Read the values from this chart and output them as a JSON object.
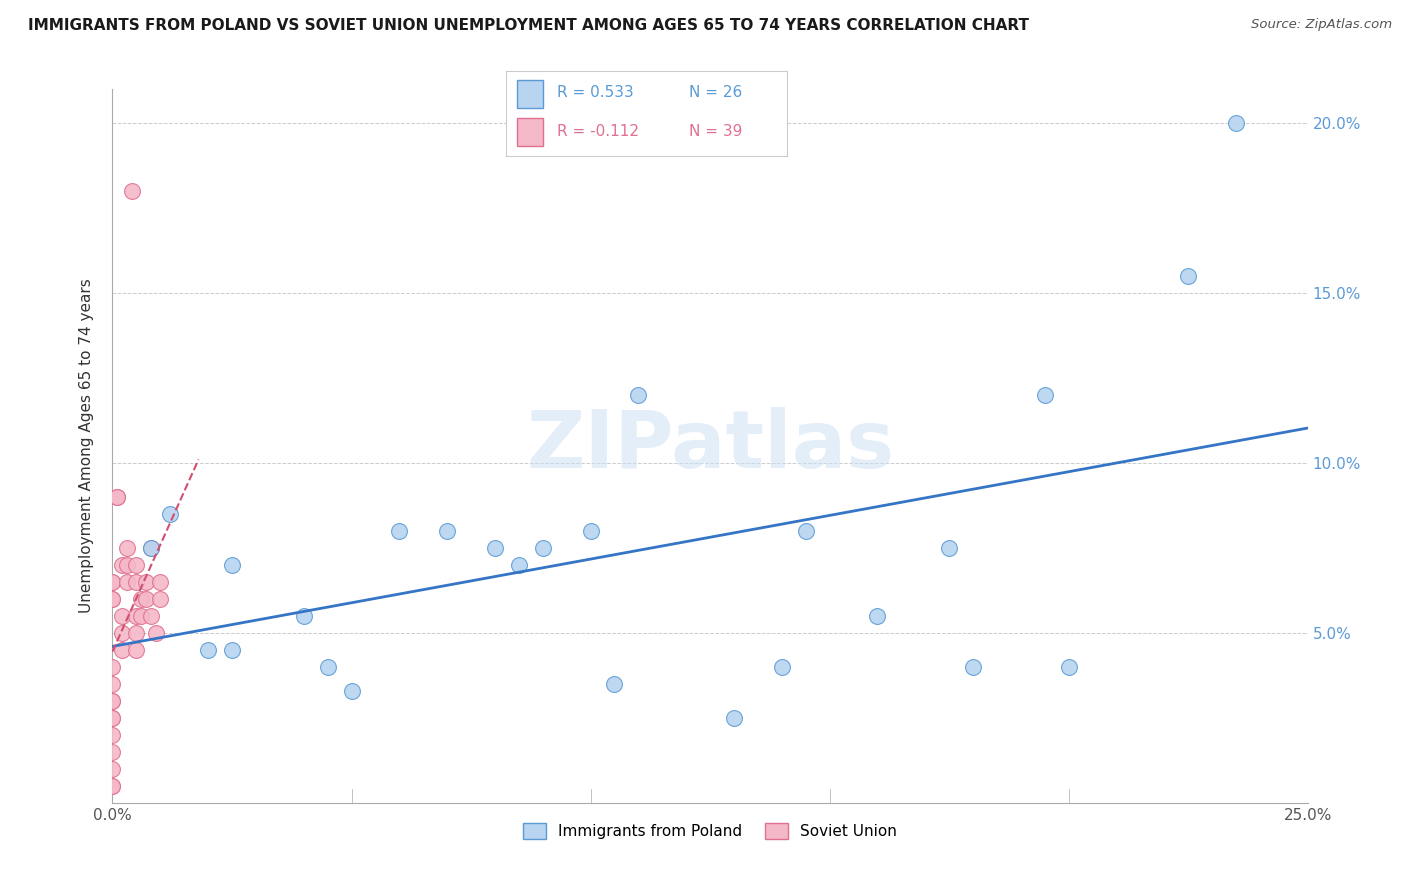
{
  "title": "IMMIGRANTS FROM POLAND VS SOVIET UNION UNEMPLOYMENT AMONG AGES 65 TO 74 YEARS CORRELATION CHART",
  "source": "Source: ZipAtlas.com",
  "ylabel": "Unemployment Among Ages 65 to 74 years",
  "xlim": [
    0.0,
    0.25
  ],
  "ylim": [
    0.0,
    0.21
  ],
  "xticks": [
    0.0,
    0.05,
    0.1,
    0.15,
    0.2,
    0.25
  ],
  "yticks": [
    0.0,
    0.05,
    0.1,
    0.15,
    0.2
  ],
  "xtick_labels": [
    "0.0%",
    "",
    "",
    "",
    "",
    "25.0%"
  ],
  "right_ytick_labels": [
    "",
    "5.0%",
    "10.0%",
    "15.0%",
    "20.0%"
  ],
  "poland_color": "#b8d4f0",
  "soviet_color": "#f5b8c8",
  "poland_edge_color": "#5b9bd5",
  "soviet_edge_color": "#e07090",
  "trendline_poland_color": "#3575c5",
  "trendline_soviet_color": "#d05070",
  "legend_R_poland": "R = 0.533",
  "legend_N_poland": "N = 26",
  "legend_R_soviet": "R = -0.112",
  "legend_N_soviet": "N = 39",
  "watermark": "ZIPatlas",
  "poland_x": [
    0.008,
    0.012,
    0.02,
    0.025,
    0.025,
    0.04,
    0.045,
    0.05,
    0.06,
    0.07,
    0.08,
    0.085,
    0.09,
    0.1,
    0.105,
    0.11,
    0.13,
    0.14,
    0.145,
    0.16,
    0.175,
    0.18,
    0.195,
    0.2,
    0.225,
    0.235
  ],
  "poland_y": [
    0.075,
    0.085,
    0.045,
    0.07,
    0.045,
    0.055,
    0.04,
    0.033,
    0.08,
    0.08,
    0.075,
    0.07,
    0.075,
    0.08,
    0.035,
    0.12,
    0.025,
    0.04,
    0.08,
    0.055,
    0.075,
    0.04,
    0.12,
    0.04,
    0.155,
    0.2
  ],
  "soviet_x": [
    0.0,
    0.0,
    0.0,
    0.0,
    0.0,
    0.0,
    0.0,
    0.0,
    0.0,
    0.0,
    0.0,
    0.0,
    0.0,
    0.0,
    0.0,
    0.001,
    0.001,
    0.002,
    0.002,
    0.002,
    0.002,
    0.003,
    0.003,
    0.003,
    0.004,
    0.005,
    0.005,
    0.005,
    0.005,
    0.005,
    0.006,
    0.006,
    0.007,
    0.007,
    0.008,
    0.008,
    0.009,
    0.01,
    0.01
  ],
  "soviet_y": [
    0.04,
    0.035,
    0.03,
    0.03,
    0.025,
    0.025,
    0.02,
    0.015,
    0.01,
    0.005,
    0.005,
    0.065,
    0.065,
    0.06,
    0.06,
    0.09,
    0.09,
    0.07,
    0.055,
    0.05,
    0.045,
    0.075,
    0.07,
    0.065,
    0.18,
    0.07,
    0.065,
    0.055,
    0.05,
    0.045,
    0.06,
    0.055,
    0.065,
    0.06,
    0.075,
    0.055,
    0.05,
    0.065,
    0.06
  ]
}
